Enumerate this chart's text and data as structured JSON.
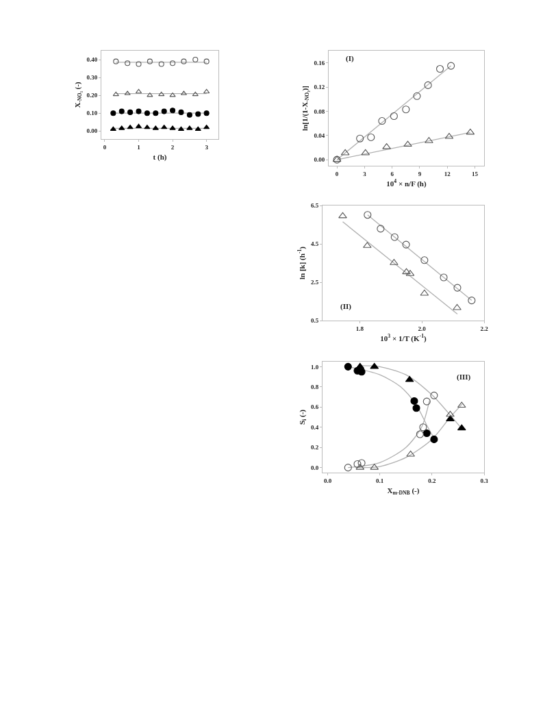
{
  "chart_data": [
    {
      "type": "scatter",
      "xlabel": "t (h)",
      "ylabel": "X$_{-NO₃}$ (-)",
      "xlim": [
        -0.1,
        3.35
      ],
      "xticks": [
        0,
        1,
        2,
        3
      ],
      "ylim": [
        -0.045,
        0.45
      ],
      "yticks": [
        {
          "value": 0,
          "label": "0.00"
        },
        {
          "value": 0.1,
          "label": "0.10"
        },
        {
          "value": 0.2,
          "label": "0.20"
        },
        {
          "value": 0.3,
          "label": "0.30"
        },
        {
          "value": 0.4,
          "label": "0.40"
        }
      ],
      "grid": false,
      "series": [
        {
          "type": "line",
          "marker": "none",
          "color": "#b0b0b0",
          "x": [
            0.33,
            3
          ],
          "values": [
            0.385,
            0.385
          ]
        },
        {
          "type": "line",
          "marker": "none",
          "color": "#b0b0b0",
          "x": [
            0.33,
            3
          ],
          "values": [
            0.21,
            0.21
          ]
        },
        {
          "type": "line",
          "marker": "none",
          "color": "#b0b0b0",
          "x": [
            0.25,
            3
          ],
          "values": [
            0.1,
            0.1
          ]
        },
        {
          "type": "line",
          "marker": "none",
          "color": "#b0b0b0",
          "x": [
            0.25,
            3
          ],
          "values": [
            0.015,
            0.015
          ]
        },
        {
          "marker": "circle",
          "color": "#555555",
          "x": [
            0.33,
            0.67,
            1,
            1.33,
            1.67,
            2,
            2.33,
            2.67,
            3
          ],
          "values": [
            0.39,
            0.38,
            0.375,
            0.39,
            0.375,
            0.38,
            0.39,
            0.4,
            0.39
          ]
        },
        {
          "marker": "triangle",
          "color": "#555555",
          "x": [
            0.33,
            0.67,
            1,
            1.33,
            1.67,
            2,
            2.33,
            2.67,
            3
          ],
          "values": [
            0.205,
            0.21,
            0.22,
            0.2,
            0.205,
            0.2,
            0.21,
            0.205,
            0.22
          ]
        },
        {
          "marker": "circle",
          "color": "#000000",
          "x": [
            0.25,
            0.5,
            0.75,
            1,
            1.25,
            1.5,
            1.75,
            2,
            2.25,
            2.5,
            2.75,
            3
          ],
          "values": [
            0.1,
            0.11,
            0.105,
            0.11,
            0.1,
            0.1,
            0.11,
            0.115,
            0.105,
            0.09,
            0.095,
            0.1
          ]
        },
        {
          "marker": "triangle",
          "color": "#000000",
          "x": [
            0.25,
            0.5,
            0.75,
            1,
            1.25,
            1.5,
            1.75,
            2,
            2.25,
            2.5,
            2.75,
            3
          ],
          "values": [
            0.01,
            0.015,
            0.02,
            0.025,
            0.02,
            0.015,
            0.02,
            0.015,
            0.01,
            0.015,
            0.01,
            0.02
          ]
        }
      ]
    },
    {
      "type": "scatter",
      "xlabel": "10$^{4}$ × n/F (h)",
      "ylabel": "ln[1/(1-X$_{-NO₃}$)]",
      "annotations": [
        "(I)"
      ],
      "xlim": [
        -0.9,
        16
      ],
      "xticks": [
        0,
        3,
        6,
        9,
        12,
        15
      ],
      "ylim": [
        -0.01,
        0.18
      ],
      "yticks": [
        {
          "value": 0,
          "label": "0.00"
        },
        {
          "value": 0.04,
          "label": "0.04"
        },
        {
          "value": 0.08,
          "label": "0.08"
        },
        {
          "value": 0.12,
          "label": "0.12"
        },
        {
          "value": 0.16,
          "label": "0.16"
        }
      ],
      "grid": false,
      "series": [
        {
          "type": "line",
          "marker": "none",
          "color": "#b0b0b0",
          "x": [
            0,
            12.4
          ],
          "values": [
            0,
            0.155
          ]
        },
        {
          "type": "line",
          "marker": "none",
          "color": "#b0b0b0",
          "x": [
            0,
            14.5
          ],
          "values": [
            0,
            0.045
          ]
        },
        {
          "marker": "circle",
          "color": "#555555",
          "x": [
            0,
            2.5,
            3.7,
            4.9,
            6.2,
            7.5,
            8.7,
            9.9,
            11.2,
            12.4
          ],
          "values": [
            0,
            0.035,
            0.037,
            0.064,
            0.072,
            0.083,
            0.105,
            0.123,
            0.15,
            0.155
          ]
        },
        {
          "marker": "triangle",
          "color": "#555555",
          "x": [
            0,
            0.9,
            3.1,
            5.4,
            7.7,
            10,
            12.2,
            14.5
          ],
          "values": [
            0,
            0.011,
            0.011,
            0.021,
            0.025,
            0.031,
            0.038,
            0.045
          ]
        }
      ]
    },
    {
      "type": "scatter",
      "xlabel": "10$^{3}$ × 1/T (K$^{-1}$)",
      "ylabel": "ln [k] (h$^{-1}$)",
      "annotations": [
        "(II)"
      ],
      "xlim": [
        1.68,
        2.2
      ],
      "xticks": [
        {
          "value": 1.8,
          "label": "1.8"
        },
        {
          "value": 2.0,
          "label": "2.0"
        },
        {
          "value": 2.2,
          "label": "2.2"
        }
      ],
      "ylim": [
        0.5,
        6.5
      ],
      "yticks": [
        {
          "value": 0.5,
          "label": "0.5"
        },
        {
          "value": 2.5,
          "label": "2.5"
        },
        {
          "value": 4.5,
          "label": "4.5"
        },
        {
          "value": 6.5,
          "label": "6.5"
        }
      ],
      "grid": false,
      "series": [
        {
          "type": "line",
          "marker": "none",
          "color": "#b0b0b0",
          "x": [
            1.825,
            2.16
          ],
          "values": [
            6.01,
            1.55
          ]
        },
        {
          "type": "line",
          "marker": "none",
          "color": "#b0b0b0",
          "x": [
            1.745,
            2.114
          ],
          "values": [
            5.65,
            0.84
          ]
        },
        {
          "marker": "circle",
          "color": "#555555",
          "x": [
            1.825,
            1.867,
            1.912,
            1.949,
            2.008,
            2.07,
            2.114,
            2.16
          ],
          "values": [
            6.01,
            5.29,
            4.85,
            4.46,
            3.65,
            2.75,
            2.21,
            1.55
          ]
        },
        {
          "marker": "triangle",
          "color": "#555555",
          "x": [
            1.745,
            1.824,
            1.91,
            1.95,
            1.962,
            2.008,
            2.113
          ],
          "values": [
            5.95,
            4.4,
            3.51,
            3.03,
            2.94,
            1.91,
            1.16
          ]
        }
      ]
    },
    {
      "type": "scatter",
      "xlabel": "X$_{m-DNB}$ (-)",
      "ylabel": "S$_{i}$ (-)",
      "annotations": [
        "(III)"
      ],
      "xlim": [
        -0.01,
        0.3
      ],
      "xticks": [
        {
          "value": 0,
          "label": "0.0"
        },
        {
          "value": 0.1,
          "label": "0.1"
        },
        {
          "value": 0.2,
          "label": "0.2"
        },
        {
          "value": 0.3,
          "label": "0.3"
        }
      ],
      "ylim": [
        -0.05,
        1.05
      ],
      "yticks": [
        {
          "value": 0,
          "label": "0.0"
        },
        {
          "value": 0.2,
          "label": "0.2"
        },
        {
          "value": 0.4,
          "label": "0.4"
        },
        {
          "value": 0.6,
          "label": "0.6"
        },
        {
          "value": 0.8,
          "label": "0.8"
        },
        {
          "value": 1,
          "label": "1.0"
        }
      ],
      "grid": false,
      "series": [
        {
          "type": "line",
          "marker": "none",
          "color": "#b0b0b0",
          "x": [
            0.039,
            0.1,
            0.14,
            0.17,
            0.19,
            0.205
          ],
          "values": [
            1.0,
            0.92,
            0.8,
            0.62,
            0.42,
            0.28
          ]
        },
        {
          "type": "line",
          "marker": "none",
          "color": "#b0b0b0",
          "x": [
            0.06,
            0.1,
            0.15,
            0.2,
            0.23,
            0.258
          ],
          "values": [
            1.01,
            1.0,
            0.92,
            0.72,
            0.55,
            0.38
          ]
        },
        {
          "type": "line",
          "marker": "none",
          "color": "#b0b0b0",
          "x": [
            0.039,
            0.1,
            0.15,
            0.18,
            0.195
          ],
          "values": [
            0,
            0.05,
            0.2,
            0.4,
            0.66
          ]
        },
        {
          "type": "line",
          "marker": "none",
          "color": "#b0b0b0",
          "x": [
            0.06,
            0.1,
            0.15,
            0.2,
            0.235,
            0.258
          ],
          "values": [
            0,
            0.01,
            0.1,
            0.28,
            0.5,
            0.63
          ]
        },
        {
          "marker": "circle",
          "color": "#000000",
          "x": [
            0.039,
            0.057,
            0.065,
            0.166,
            0.17,
            0.19,
            0.204
          ],
          "values": [
            1.0,
            0.96,
            0.95,
            0.66,
            0.59,
            0.34,
            0.28
          ]
        },
        {
          "marker": "triangle",
          "color": "#000000",
          "x": [
            0.062,
            0.0895,
            0.157,
            0.235,
            0.257
          ],
          "values": [
            1.0,
            1.0,
            0.87,
            0.48,
            0.39
          ]
        },
        {
          "marker": "circle",
          "color": "#555555",
          "x": [
            0.039,
            0.057,
            0.065,
            0.177,
            0.183,
            0.19,
            0.204
          ],
          "values": [
            0,
            0.035,
            0.045,
            0.33,
            0.4,
            0.655,
            0.715
          ]
        },
        {
          "marker": "triangle",
          "color": "#555555",
          "x": [
            0.062,
            0.0895,
            0.159,
            0.235,
            0.257
          ],
          "values": [
            0,
            0,
            0.13,
            0.525,
            0.615
          ]
        }
      ]
    }
  ]
}
